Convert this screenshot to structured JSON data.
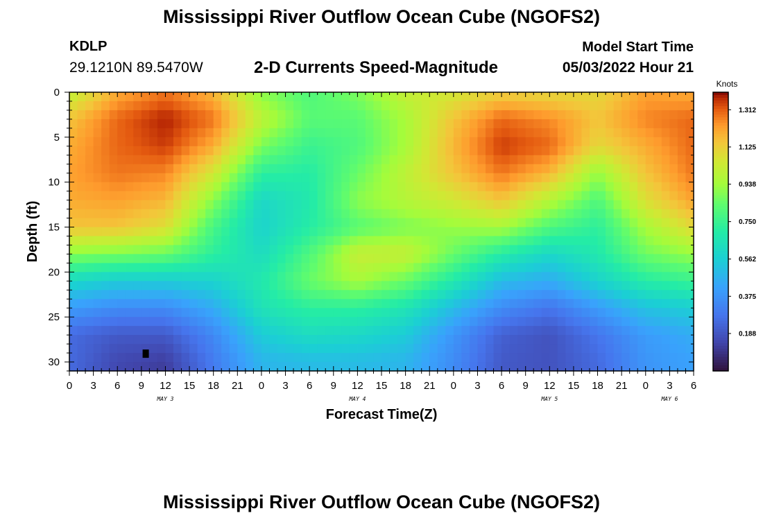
{
  "header": {
    "title": "Mississippi River Outflow Ocean Cube (NGOFS2)",
    "station_id": "KDLP",
    "station_coords": "29.1210N  89.5470W",
    "subtitle": "2-D Currents Speed-Magnitude",
    "model_start_label": "Model Start Time",
    "model_start_value": "05/03/2022 Hour 21"
  },
  "footer": {
    "title": "Mississippi River Outflow Ocean Cube (NGOFS2)"
  },
  "chart_data": {
    "type": "heatmap",
    "title": "2-D Currents Speed-Magnitude",
    "xlabel": "Forecast Time(Z)",
    "ylabel": "Depth (ft)",
    "x_unit": "forecast hour from 00Z May 3",
    "xlim": [
      0,
      78
    ],
    "ylim": [
      0,
      31
    ],
    "x_ticks": [
      {
        "hour": 0,
        "label": "0"
      },
      {
        "hour": 3,
        "label": "3"
      },
      {
        "hour": 6,
        "label": "6"
      },
      {
        "hour": 9,
        "label": "9"
      },
      {
        "hour": 12,
        "label": "12"
      },
      {
        "hour": 15,
        "label": "15"
      },
      {
        "hour": 18,
        "label": "18"
      },
      {
        "hour": 21,
        "label": "21"
      },
      {
        "hour": 24,
        "label": "0"
      },
      {
        "hour": 27,
        "label": "3"
      },
      {
        "hour": 30,
        "label": "6"
      },
      {
        "hour": 33,
        "label": "9"
      },
      {
        "hour": 36,
        "label": "12"
      },
      {
        "hour": 39,
        "label": "15"
      },
      {
        "hour": 42,
        "label": "18"
      },
      {
        "hour": 45,
        "label": "21"
      },
      {
        "hour": 48,
        "label": "0"
      },
      {
        "hour": 51,
        "label": "3"
      },
      {
        "hour": 54,
        "label": "6"
      },
      {
        "hour": 57,
        "label": "9"
      },
      {
        "hour": 60,
        "label": "12"
      },
      {
        "hour": 63,
        "label": "15"
      },
      {
        "hour": 66,
        "label": "18"
      },
      {
        "hour": 69,
        "label": "21"
      },
      {
        "hour": 72,
        "label": "0"
      },
      {
        "hour": 75,
        "label": "3"
      },
      {
        "hour": 78,
        "label": "6"
      }
    ],
    "y_ticks": [
      0,
      5,
      10,
      15,
      20,
      25,
      30
    ],
    "day_labels": [
      {
        "hour": 12,
        "label": "MAY 3"
      },
      {
        "hour": 36,
        "label": "MAY 4"
      },
      {
        "hour": 60,
        "label": "MAY 5"
      },
      {
        "hour": 75,
        "label": "MAY 6"
      }
    ],
    "colorbar": {
      "title": "Knots",
      "min": 0.0,
      "max": 1.4,
      "tick_values": [
        1.312,
        1.125,
        0.938,
        0.75,
        0.562,
        0.375,
        0.188
      ],
      "tick_labels": [
        "1.312",
        "1.125",
        "0.938",
        "0.750",
        "0.562",
        "0.375",
        "0.188"
      ],
      "colormap": "turbo"
    },
    "grid": {
      "x_hours": [
        0,
        6,
        12,
        18,
        24,
        30,
        36,
        42,
        48,
        54,
        60,
        66,
        72,
        78
      ],
      "depths": [
        0,
        3,
        6,
        9,
        12,
        15,
        18,
        21,
        24,
        27,
        30
      ],
      "speed_knots": [
        [
          1.0,
          1.2,
          1.28,
          1.18,
          0.9,
          0.8,
          0.88,
          1.02,
          1.05,
          1.12,
          1.1,
          1.1,
          1.22,
          1.2
        ],
        [
          1.15,
          1.3,
          1.38,
          1.28,
          1.0,
          0.82,
          0.82,
          0.95,
          1.15,
          1.3,
          1.25,
          1.15,
          1.26,
          1.3
        ],
        [
          1.2,
          1.3,
          1.35,
          1.2,
          0.88,
          0.75,
          0.8,
          0.95,
          1.18,
          1.35,
          1.3,
          1.1,
          1.2,
          1.3
        ],
        [
          1.22,
          1.28,
          1.26,
          1.05,
          0.72,
          0.7,
          0.85,
          1.0,
          1.15,
          1.28,
          1.18,
          0.92,
          1.15,
          1.28
        ],
        [
          1.2,
          1.22,
          1.18,
          0.9,
          0.6,
          0.68,
          0.9,
          0.98,
          1.05,
          1.15,
          0.98,
          0.8,
          1.08,
          1.22
        ],
        [
          1.15,
          1.15,
          1.08,
          0.78,
          0.58,
          0.7,
          0.82,
          0.88,
          0.92,
          0.95,
          0.8,
          0.72,
          0.95,
          1.1
        ],
        [
          0.9,
          0.88,
          0.85,
          0.72,
          0.62,
          0.8,
          1.02,
          1.02,
          0.85,
          0.7,
          0.6,
          0.68,
          0.86,
          0.92
        ],
        [
          0.6,
          0.55,
          0.55,
          0.58,
          0.68,
          0.85,
          0.95,
          0.85,
          0.68,
          0.5,
          0.45,
          0.58,
          0.7,
          0.75
        ],
        [
          0.4,
          0.35,
          0.35,
          0.45,
          0.65,
          0.72,
          0.72,
          0.66,
          0.5,
          0.35,
          0.28,
          0.4,
          0.52,
          0.56
        ],
        [
          0.25,
          0.2,
          0.2,
          0.34,
          0.55,
          0.62,
          0.6,
          0.55,
          0.38,
          0.22,
          0.18,
          0.28,
          0.4,
          0.45
        ],
        [
          0.25,
          0.15,
          0.12,
          0.3,
          0.48,
          0.5,
          0.5,
          0.48,
          0.35,
          0.2,
          0.18,
          0.25,
          0.38,
          0.42
        ]
      ],
      "missing_cells": [
        {
          "hour": 9.5,
          "depth": 29.0
        }
      ]
    }
  }
}
